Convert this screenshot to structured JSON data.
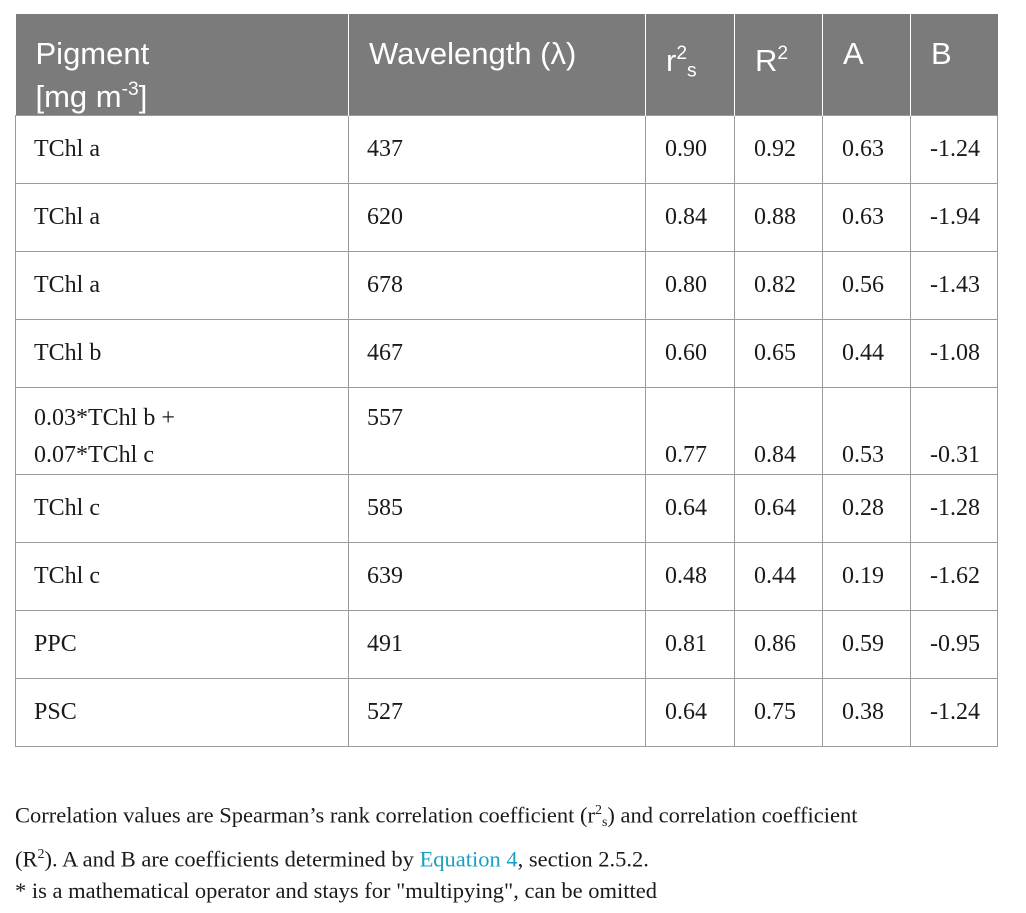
{
  "table": {
    "headers": {
      "pigment_line1": "Pigment",
      "pigment_line2_prefix": "[mg m",
      "pigment_line2_sup": "-3",
      "pigment_line2_suffix": "]",
      "wavelength": "Wavelength (λ)",
      "rs_base": "r",
      "rs_sup": "2",
      "rs_sub": "s",
      "R2_base": "R",
      "R2_sup": "2",
      "A": "A",
      "B": "B"
    },
    "rows": [
      {
        "pigment": "TChl a",
        "wavelength": "437",
        "rs": "0.90",
        "R2": "0.92",
        "A": "0.63",
        "B": "-1.24"
      },
      {
        "pigment": "TChl a",
        "wavelength": "620",
        "rs": "0.84",
        "R2": "0.88",
        "A": "0.63",
        "B": "-1.94"
      },
      {
        "pigment": "TChl a",
        "wavelength": "678",
        "rs": "0.80",
        "R2": "0.82",
        "A": "0.56",
        "B": "-1.43"
      },
      {
        "pigment": "TChl b",
        "wavelength": "467",
        "rs": "0.60",
        "R2": "0.65",
        "A": "0.44",
        "B": "-1.08"
      },
      {
        "pigment_line1": "0.03*TChl b +",
        "pigment_line2": "0.07*TChl c",
        "wavelength": "557",
        "rs": "0.77",
        "R2": "0.84",
        "A": "0.53",
        "B": "-0.31"
      },
      {
        "pigment": "TChl c",
        "wavelength": "585",
        "rs": "0.64",
        "R2": "0.64",
        "A": "0.28",
        "B": "-1.28"
      },
      {
        "pigment": "TChl c",
        "wavelength": "639",
        "rs": "0.48",
        "R2": "0.44",
        "A": "0.19",
        "B": "-1.62"
      },
      {
        "pigment": "PPC",
        "wavelength": "491",
        "rs": "0.81",
        "R2": "0.86",
        "A": "0.59",
        "B": "-0.95"
      },
      {
        "pigment": "PSC",
        "wavelength": "527",
        "rs": "0.64",
        "R2": "0.75",
        "A": "0.38",
        "B": "-1.24"
      }
    ]
  },
  "notes": {
    "line1_a": "Correlation values are Spearman’s rank correlation coefficient (r",
    "line1_sup": "2",
    "line1_sub": "s",
    "line1_b": ") and correlation coefficient",
    "line2_a": "(R",
    "line2_sup": "2",
    "line2_b": "). A and B are coefficients determined by ",
    "line2_link": "Equation 4",
    "line2_c": ", section 2.5.2.",
    "line3": "* is a mathematical operator and stays for \"multipying\", can be omitted"
  }
}
